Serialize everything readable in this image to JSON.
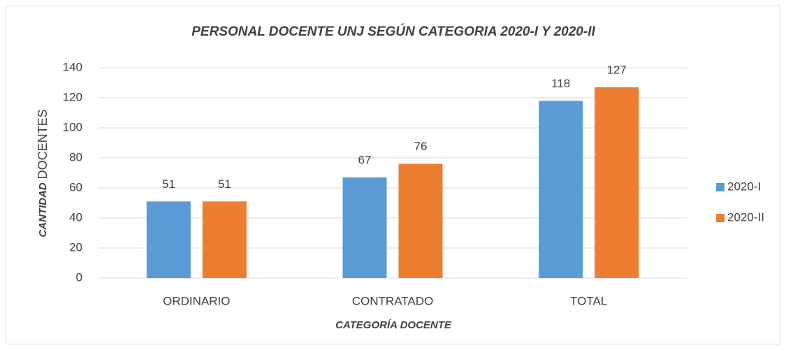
{
  "chart_data": {
    "type": "bar",
    "title": "PERSONAL DOCENTE UNJ SEGÚN CATEGORIA 2020-I Y 2020-II",
    "xlabel": "CATEGORÍA DOCENTE",
    "ylabel": [
      "CANTIDAD",
      "DOCENTES"
    ],
    "categories": [
      "ORDINARIO",
      "CONTRATADO",
      "TOTAL"
    ],
    "series": [
      {
        "name": "2020-I",
        "color": "#5b9bd5",
        "values": [
          51,
          67,
          118
        ]
      },
      {
        "name": "2020-II",
        "color": "#ed7d31",
        "values": [
          51,
          76,
          127
        ]
      }
    ],
    "ylim": [
      0,
      140
    ],
    "yticks": [
      0,
      20,
      40,
      60,
      80,
      100,
      120,
      140
    ],
    "grid": true,
    "legend": "right"
  }
}
